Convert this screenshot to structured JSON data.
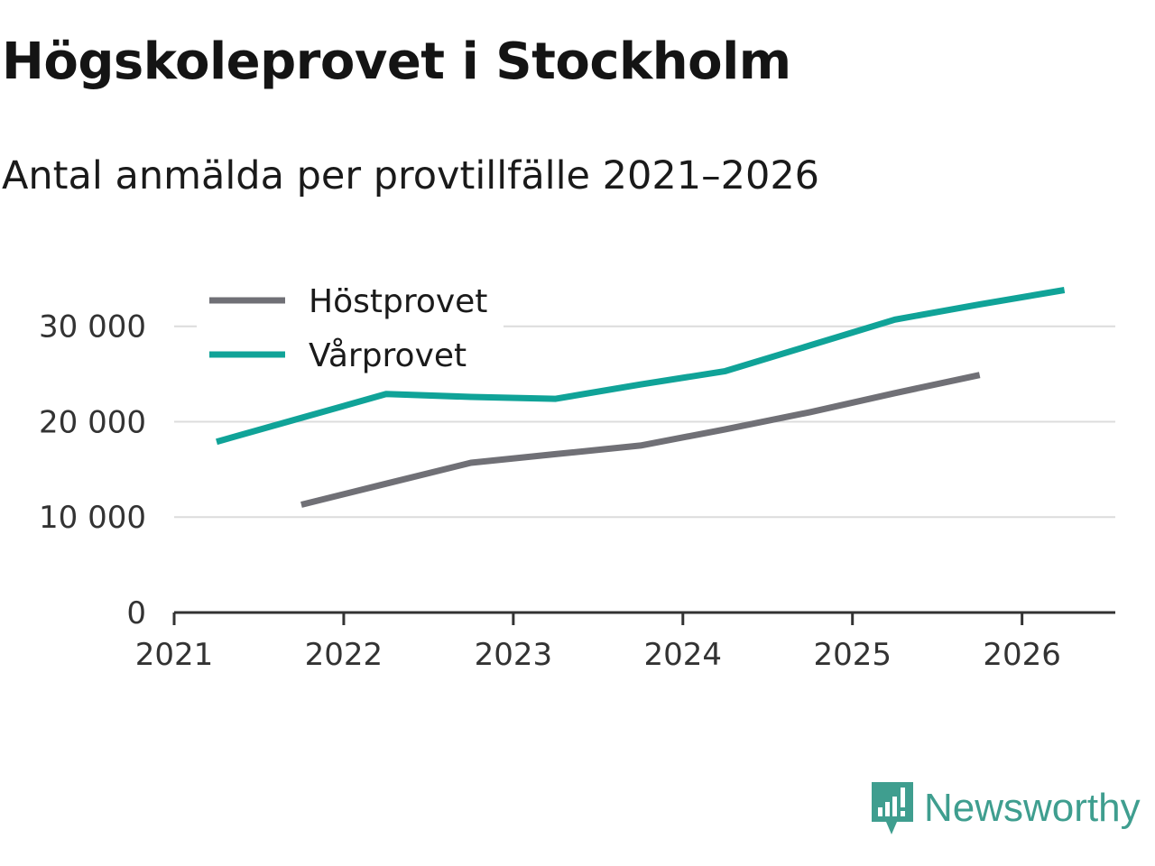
{
  "title": "Högskoleprovet i Stockholm",
  "subtitle": "Antal anmälda per provtillfälle 2021–2026",
  "brand": {
    "name": "Newsworthy",
    "icon": "newsworthy-logo-icon",
    "color": "#3f9e8f"
  },
  "chart_data": {
    "type": "line",
    "title": "Högskoleprovet i Stockholm",
    "subtitle": "Antal anmälda per provtillfälle 2021–2026",
    "xlabel": "",
    "ylabel": "",
    "x_ticks": [
      "2021",
      "2022",
      "2023",
      "2024",
      "2025",
      "2026"
    ],
    "x_tick_values": [
      2021,
      2022,
      2023,
      2024,
      2025,
      2026
    ],
    "xlim": [
      2021,
      2026.55
    ],
    "y_ticks": [
      "0",
      "10 000",
      "20 000",
      "30 000"
    ],
    "y_tick_values": [
      0,
      10000,
      20000,
      30000
    ],
    "ylim": [
      0,
      33000
    ],
    "grid": true,
    "legend_position": "top-left",
    "series": [
      {
        "name": "Höstprovet",
        "color": "#707076",
        "x": [
          2021.75,
          2022.25,
          2022.75,
          2023.25,
          2023.75,
          2024.25,
          2024.75,
          2025.25,
          2025.75
        ],
        "values": [
          11300,
          13500,
          15700,
          16600,
          17500,
          19200,
          21000,
          23000,
          24900
        ]
      },
      {
        "name": "Vårprovet",
        "color": "#10a398",
        "x": [
          2021.25,
          2021.75,
          2022.25,
          2022.75,
          2023.25,
          2023.75,
          2024.25,
          2024.75,
          2025.25,
          2025.75,
          2026.25
        ],
        "values": [
          17900,
          20400,
          22900,
          22600,
          22400,
          23900,
          25300,
          28000,
          30700,
          32300,
          33800
        ]
      }
    ]
  }
}
